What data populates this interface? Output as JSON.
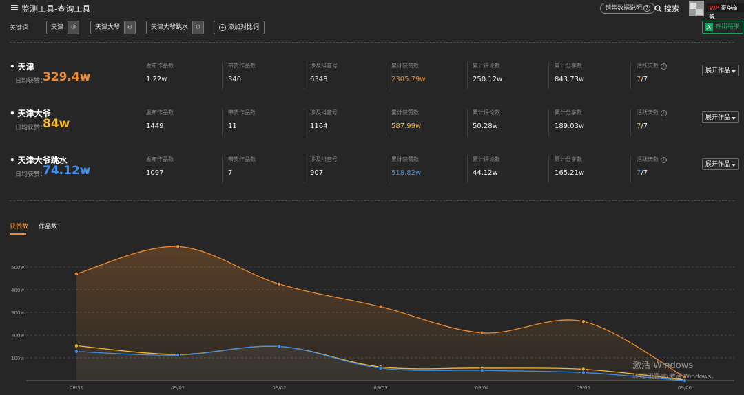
{
  "header": {
    "title": "监测工具-查询工具",
    "help_label": "销售数据说明",
    "help_icon": "?",
    "search_label": "搜索",
    "vip_label": "VIP",
    "vip_text": "豪华商务"
  },
  "keywords_bar": {
    "label": "关键词",
    "chips": [
      "天津",
      "天津大爷",
      "天津大爷跳水"
    ],
    "add_label": "添加对比词",
    "export_label": "导出结果"
  },
  "colors": {
    "orange": "#f08a2c",
    "gold": "#f5b730",
    "blue": "#3b8fef"
  },
  "rows": [
    {
      "name": "天津",
      "sub_label": "日均获赞：",
      "big_value": "329.4w",
      "color": "#f08a2c",
      "stats": [
        {
          "label": "发布作品数",
          "value": "1.22w"
        },
        {
          "label": "带货作品数",
          "value": "340"
        },
        {
          "label": "涉及抖音号",
          "value": "6348"
        },
        {
          "label": "累计获赞数",
          "value": "2305.79w"
        },
        {
          "label": "累计评论数",
          "value": "250.12w"
        },
        {
          "label": "累计分享数",
          "value": "843.73w"
        }
      ],
      "active_label": "活跃天数",
      "active_num": "7",
      "active_den": "/7",
      "expand_label": "展开作品"
    },
    {
      "name": "天津大爷",
      "sub_label": "日均获赞：",
      "big_value": "84w",
      "color": "#f5b730",
      "stats": [
        {
          "label": "发布作品数",
          "value": "1449"
        },
        {
          "label": "带货作品数",
          "value": "11"
        },
        {
          "label": "涉及抖音号",
          "value": "1164"
        },
        {
          "label": "累计获赞数",
          "value": "587.99w"
        },
        {
          "label": "累计评论数",
          "value": "50.28w"
        },
        {
          "label": "累计分享数",
          "value": "189.03w"
        }
      ],
      "active_label": "活跃天数",
      "active_num": "7",
      "active_den": "/7",
      "expand_label": "展开作品"
    },
    {
      "name": "天津大爷跳水",
      "sub_label": "日均获赞：",
      "big_value": "74.12w",
      "color": "#3b8fef",
      "stats": [
        {
          "label": "发布作品数",
          "value": "1097"
        },
        {
          "label": "带货作品数",
          "value": "7"
        },
        {
          "label": "涉及抖音号",
          "value": "907"
        },
        {
          "label": "累计获赞数",
          "value": "518.82w"
        },
        {
          "label": "累计评论数",
          "value": "44.12w"
        },
        {
          "label": "累计分享数",
          "value": "165.21w"
        }
      ],
      "active_label": "活跃天数",
      "active_num": "7",
      "active_den": "/7",
      "expand_label": "展开作品"
    }
  ],
  "tabs": [
    "获赞数",
    "作品数"
  ],
  "chart_data": {
    "type": "line",
    "categories": [
      "08/31",
      "09/01",
      "09/02",
      "09/03",
      "09/04",
      "09/05",
      "09/06"
    ],
    "y_ticks": [
      "100w",
      "200w",
      "300w",
      "400w",
      "500w"
    ],
    "ylim": [
      0,
      600
    ],
    "grid": true,
    "series": [
      {
        "values": [
          470,
          590,
          425,
          325,
          210,
          260,
          15
        ],
        "color": "#f08a2c"
      },
      {
        "values": [
          153,
          115,
          150,
          60,
          55,
          50,
          3
        ],
        "color": "#f5b730"
      },
      {
        "values": [
          128,
          112,
          150,
          55,
          45,
          35,
          0
        ],
        "color": "#3b8fef"
      }
    ]
  },
  "watermark": {
    "line1": "激活 Windows",
    "line2": "转到\"设置\"以激活 Windows。"
  }
}
